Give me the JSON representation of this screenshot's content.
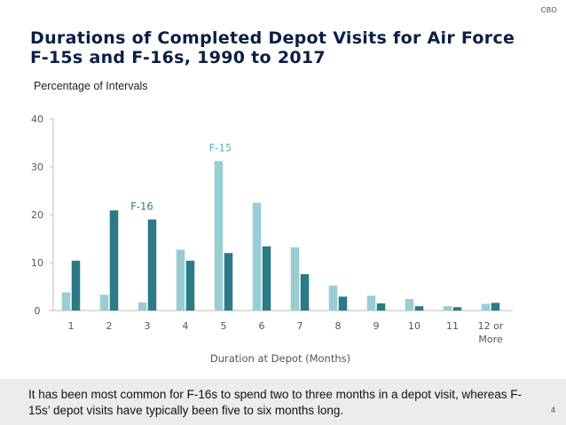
{
  "header": {
    "logo_text": "CBO",
    "title": "Durations of Completed Depot Visits for Air Force F-15s and F-16s, 1990 to 2017"
  },
  "footer": {
    "text": "It has been most common for F-16s to spend two to three months in a depot visit, whereas F-15s’ depot visits have typically been five to six months long.",
    "page_number": "4"
  },
  "colors": {
    "f15": "#98cdd3",
    "f16": "#2b7a86",
    "axis_text": "#555555",
    "axis_line": "#bbbbbb"
  },
  "chart_data": {
    "type": "bar",
    "title": "Durations of Completed Depot Visits for Air Force F-15s and F-16s, 1990 to 2017",
    "ylabel": "Percentage of Intervals",
    "xlabel": "Duration at Depot (Months)",
    "ylim": [
      0,
      40
    ],
    "yticks": [
      "0",
      "10",
      "20",
      "30",
      "40"
    ],
    "categories": [
      "1",
      "2",
      "3",
      "4",
      "5",
      "6",
      "7",
      "8",
      "9",
      "10",
      "11",
      "12 or More"
    ],
    "series": [
      {
        "name": "F-15",
        "values": [
          3.8,
          3.3,
          1.7,
          12.7,
          31.2,
          22.5,
          13.2,
          5.2,
          3.1,
          2.4,
          0.9,
          1.4
        ],
        "annotation": "F-15",
        "annotation_category": "5"
      },
      {
        "name": "F-16",
        "values": [
          10.4,
          20.9,
          19.0,
          10.4,
          12.0,
          13.4,
          7.6,
          2.9,
          1.5,
          0.9,
          0.7,
          1.6
        ],
        "annotation": "F-16",
        "annotation_category": "3"
      }
    ]
  }
}
